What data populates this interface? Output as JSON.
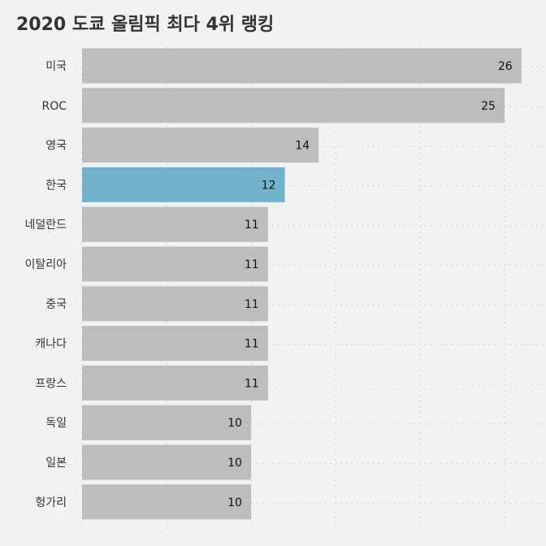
{
  "chart_data": {
    "type": "bar",
    "orientation": "horizontal",
    "title": "2020 도쿄 올림픽 최다 4위 랭킹",
    "xlabel": "",
    "ylabel": "",
    "categories": [
      "미국",
      "ROC",
      "영국",
      "한국",
      "네덜란드",
      "이탈리아",
      "중국",
      "캐나다",
      "프랑스",
      "독일",
      "일본",
      "헝가리"
    ],
    "values": [
      26,
      25,
      14,
      12,
      11,
      11,
      11,
      11,
      11,
      10,
      10,
      10
    ],
    "xlim": [
      0,
      26
    ],
    "grid": true,
    "legend": "none",
    "highlight_category": "한국",
    "colors": {
      "bar": "#bdbdbd",
      "highlight": "#72b2cc",
      "background": "#f2f2f2",
      "grid": "#cccccc",
      "title": "#333333"
    }
  }
}
